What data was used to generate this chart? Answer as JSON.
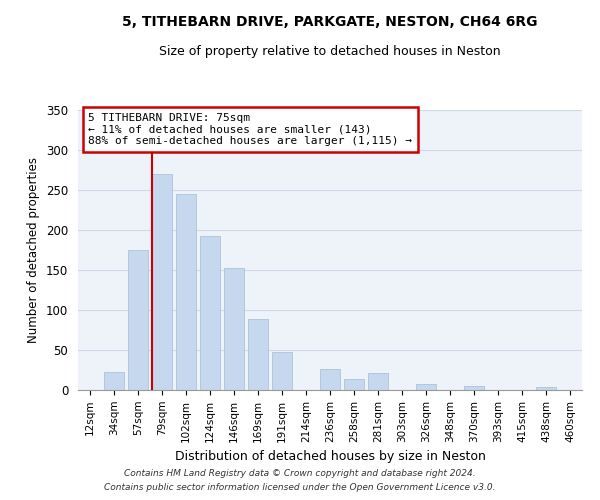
{
  "title": "5, TITHEBARN DRIVE, PARKGATE, NESTON, CH64 6RG",
  "subtitle": "Size of property relative to detached houses in Neston",
  "xlabel": "Distribution of detached houses by size in Neston",
  "ylabel": "Number of detached properties",
  "bar_labels": [
    "12sqm",
    "34sqm",
    "57sqm",
    "79sqm",
    "102sqm",
    "124sqm",
    "146sqm",
    "169sqm",
    "191sqm",
    "214sqm",
    "236sqm",
    "258sqm",
    "281sqm",
    "303sqm",
    "326sqm",
    "348sqm",
    "370sqm",
    "393sqm",
    "415sqm",
    "438sqm",
    "460sqm"
  ],
  "bar_values": [
    0,
    23,
    175,
    270,
    245,
    193,
    153,
    89,
    48,
    0,
    26,
    14,
    21,
    0,
    8,
    0,
    5,
    0,
    0,
    4,
    0
  ],
  "bar_color": "#c5d8ed",
  "bar_edge_color": "#a8c4da",
  "grid_color": "#d0d8e8",
  "bg_color": "#eef3fa",
  "vline_color": "#cc0000",
  "annotation_title": "5 TITHEBARN DRIVE: 75sqm",
  "annotation_line1": "← 11% of detached houses are smaller (143)",
  "annotation_line2": "88% of semi-detached houses are larger (1,115) →",
  "annotation_box_color": "#ffffff",
  "annotation_box_edge": "#cc0000",
  "ylim": [
    0,
    350
  ],
  "yticks": [
    0,
    50,
    100,
    150,
    200,
    250,
    300,
    350
  ],
  "footnote1": "Contains HM Land Registry data © Crown copyright and database right 2024.",
  "footnote2": "Contains public sector information licensed under the Open Government Licence v3.0."
}
